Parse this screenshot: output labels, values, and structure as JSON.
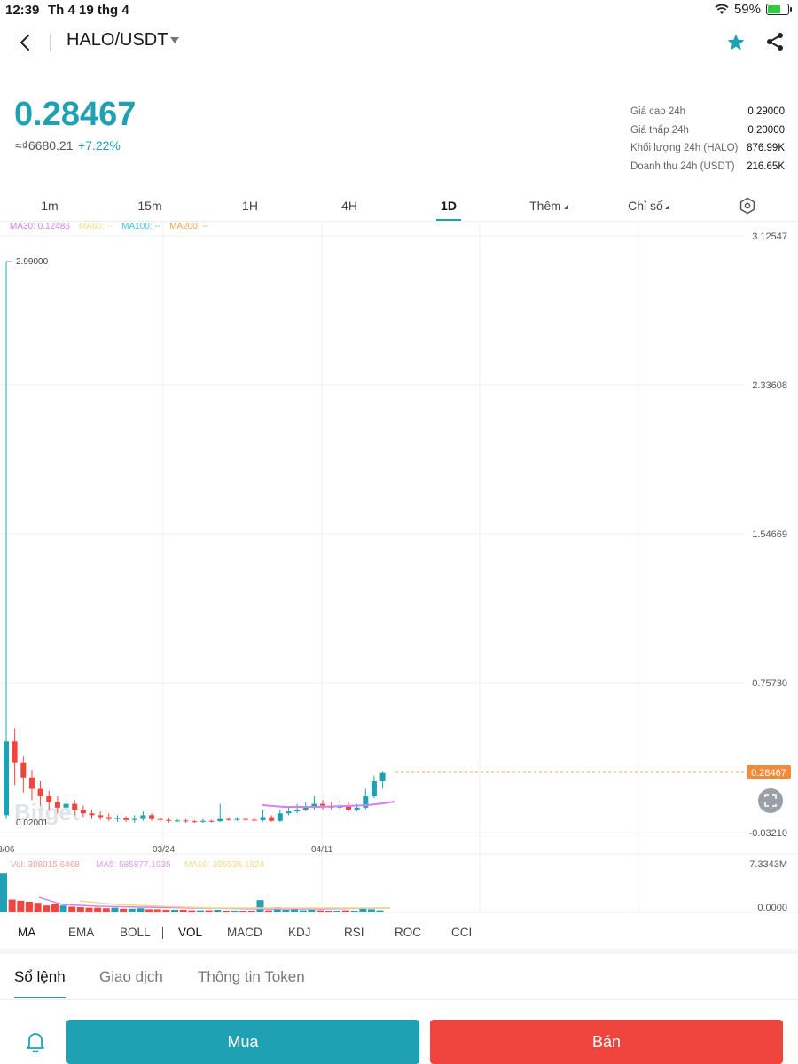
{
  "status": {
    "time": "12:39",
    "date": "Th 4 19 thg 4",
    "battery": "59%",
    "battery_level": 0.59
  },
  "header": {
    "pair": "HALO/USDT"
  },
  "price": {
    "last": "0.28467",
    "fiat": "≈₫6680.21",
    "change": "+7.22%"
  },
  "stats": [
    {
      "label": "Giá cao 24h",
      "value": "0.29000"
    },
    {
      "label": "Giá thấp 24h",
      "value": "0.20000"
    },
    {
      "label": "Khối lượng 24h (HALO)",
      "value": "876.99K"
    },
    {
      "label": "Doanh thu 24h (USDT)",
      "value": "216.65K"
    }
  ],
  "timeframes": [
    {
      "label": "1m"
    },
    {
      "label": "15m"
    },
    {
      "label": "1H"
    },
    {
      "label": "4H"
    },
    {
      "label": "1D"
    },
    {
      "label": "Thêm"
    },
    {
      "label": "Chỉ số"
    }
  ],
  "active_timeframe": "1D",
  "ma_legend": [
    {
      "text": "MA30: 0.12486",
      "color": "#d580f0"
    },
    {
      "text": "MA60: --",
      "color": "#f3d98a"
    },
    {
      "text": "MA100: --",
      "color": "#3fc6dc"
    },
    {
      "text": "MA200: --",
      "color": "#f5a25d"
    }
  ],
  "watermark": "Bitget",
  "chart_data": {
    "type": "candlestick",
    "y_axis_labels": [
      "3.12547",
      "2.33608",
      "1.54669",
      "0.75730",
      "-0.03210"
    ],
    "ylim": [
      -0.0321,
      3.12547
    ],
    "x_axis_labels": [
      "3/06",
      "03/24",
      "04/11"
    ],
    "max_label": "2.99000",
    "min_label": "0.02001",
    "last_price_label": "0.28467",
    "up_color": "#1fa0b3",
    "down_color": "#f0453f",
    "volume_axis_labels": [
      "7.3343M",
      "0.0000"
    ],
    "volume_legend": [
      {
        "text": "Vol: 308015.6468",
        "color": "#f0a0a0"
      },
      {
        "text": "MA5: 585877.1935",
        "color": "#e09ce8"
      },
      {
        "text": "MA10: 395535.1824",
        "color": "#f3d98a"
      }
    ]
  },
  "indicators": [
    "MA",
    "EMA",
    "BOLL",
    "VOL",
    "MACD",
    "KDJ",
    "RSI",
    "ROC",
    "CCI"
  ],
  "sections": [
    "Sổ lệnh",
    "Giao dịch",
    "Thông tin Token"
  ],
  "actions": {
    "buy": "Mua",
    "sell": "Bán"
  }
}
